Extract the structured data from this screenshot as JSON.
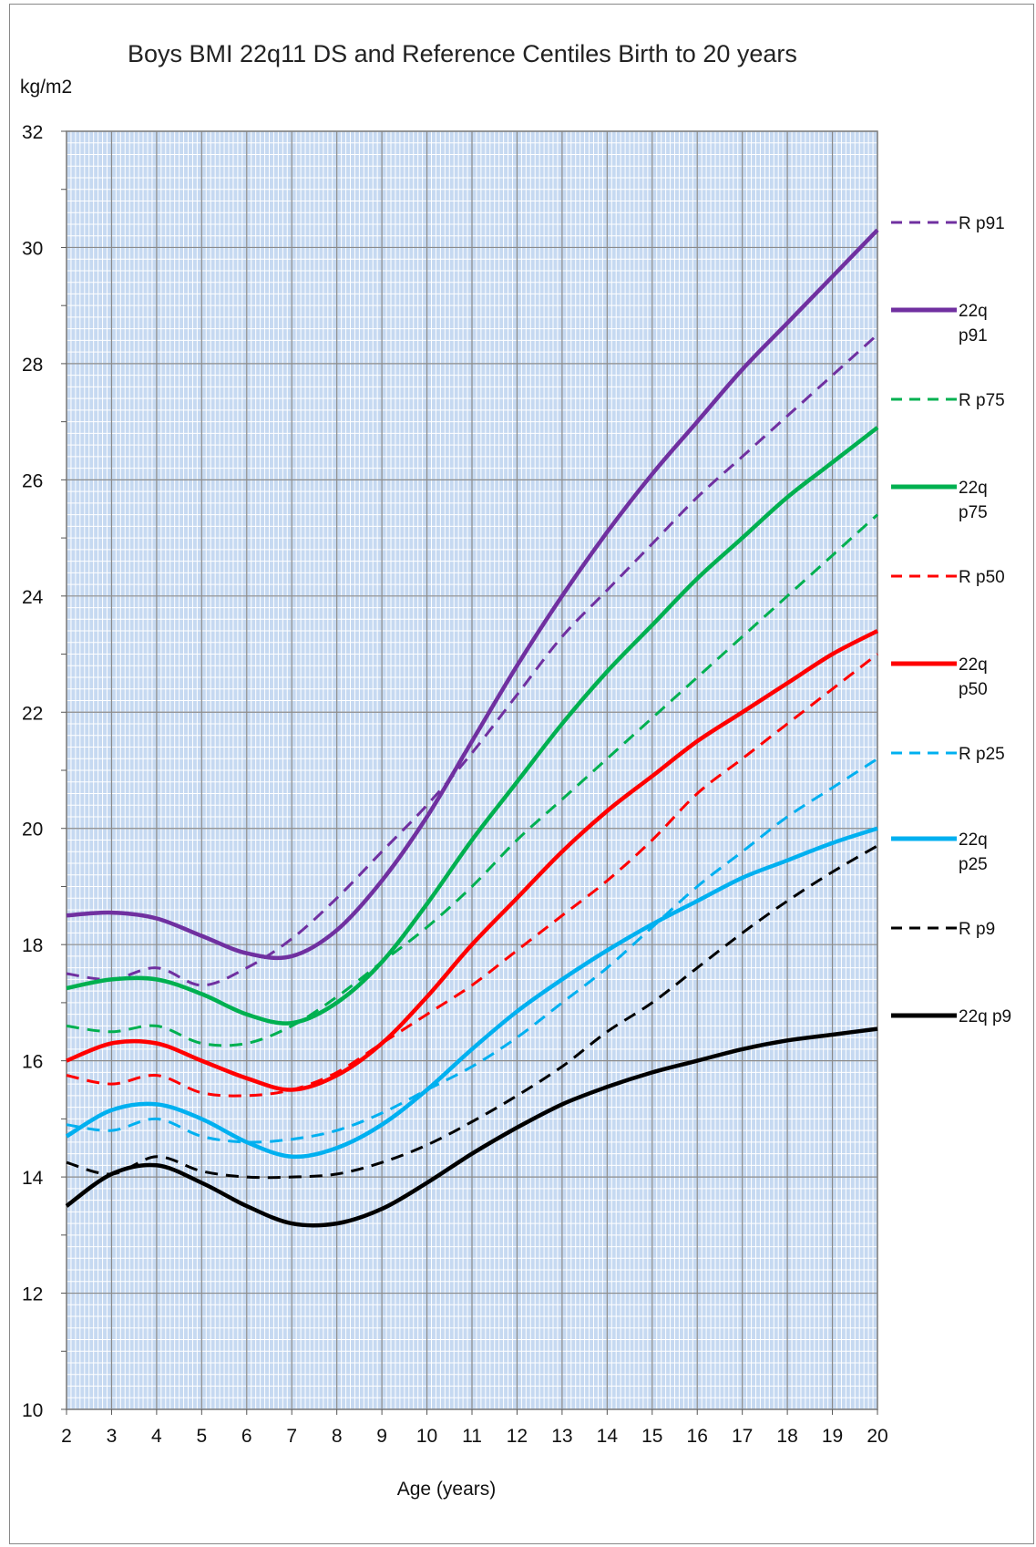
{
  "chart_data": {
    "type": "line",
    "title": "Boys BMI 22q11 DS and Reference Centiles Birth to 20 years",
    "ylabel": "kg/m2",
    "xlabel": "Age (years)",
    "xlim": [
      2,
      20
    ],
    "ylim": [
      10,
      32
    ],
    "x_ticks": [
      2,
      3,
      4,
      5,
      6,
      7,
      8,
      9,
      10,
      11,
      12,
      13,
      14,
      15,
      16,
      17,
      18,
      19,
      20
    ],
    "y_ticks": [
      10,
      12,
      14,
      16,
      18,
      20,
      22,
      24,
      26,
      28,
      30,
      32
    ],
    "grid": true,
    "legend_position": "right",
    "series": [
      {
        "name": "R p91",
        "dashed": true,
        "color": "#7030a0",
        "points": [
          [
            2,
            17.5
          ],
          [
            3,
            17.4
          ],
          [
            4,
            17.6
          ],
          [
            5,
            17.3
          ],
          [
            6,
            17.6
          ],
          [
            7,
            18.1
          ],
          [
            8,
            18.8
          ],
          [
            9,
            19.6
          ],
          [
            10,
            20.4
          ],
          [
            11,
            21.3
          ],
          [
            12,
            22.3
          ],
          [
            13,
            23.3
          ],
          [
            14,
            24.1
          ],
          [
            15,
            24.9
          ],
          [
            16,
            25.7
          ],
          [
            17,
            26.4
          ],
          [
            18,
            27.1
          ],
          [
            19,
            27.8
          ],
          [
            20,
            28.5
          ]
        ]
      },
      {
        "name": "22q p91",
        "dashed": false,
        "color": "#7030a0",
        "points": [
          [
            2,
            18.5
          ],
          [
            3,
            18.55
          ],
          [
            4,
            18.45
          ],
          [
            5,
            18.15
          ],
          [
            6,
            17.85
          ],
          [
            7,
            17.8
          ],
          [
            8,
            18.25
          ],
          [
            9,
            19.1
          ],
          [
            10,
            20.2
          ],
          [
            11,
            21.5
          ],
          [
            12,
            22.8
          ],
          [
            13,
            24.0
          ],
          [
            14,
            25.1
          ],
          [
            15,
            26.1
          ],
          [
            16,
            27.0
          ],
          [
            17,
            27.9
          ],
          [
            18,
            28.7
          ],
          [
            19,
            29.5
          ],
          [
            20,
            30.3
          ]
        ]
      },
      {
        "name": "R p75",
        "dashed": true,
        "color": "#00b050",
        "points": [
          [
            2,
            16.6
          ],
          [
            3,
            16.5
          ],
          [
            4,
            16.6
          ],
          [
            5,
            16.3
          ],
          [
            6,
            16.3
          ],
          [
            7,
            16.6
          ],
          [
            8,
            17.1
          ],
          [
            9,
            17.7
          ],
          [
            10,
            18.3
          ],
          [
            11,
            19.0
          ],
          [
            12,
            19.8
          ],
          [
            13,
            20.5
          ],
          [
            14,
            21.2
          ],
          [
            15,
            21.9
          ],
          [
            16,
            22.6
          ],
          [
            17,
            23.3
          ],
          [
            18,
            24.0
          ],
          [
            19,
            24.7
          ],
          [
            20,
            25.4
          ]
        ]
      },
      {
        "name": "22q p75",
        "dashed": false,
        "color": "#00b050",
        "points": [
          [
            2,
            17.25
          ],
          [
            3,
            17.4
          ],
          [
            4,
            17.4
          ],
          [
            5,
            17.15
          ],
          [
            6,
            16.8
          ],
          [
            7,
            16.65
          ],
          [
            8,
            17.0
          ],
          [
            9,
            17.7
          ],
          [
            10,
            18.7
          ],
          [
            11,
            19.8
          ],
          [
            12,
            20.8
          ],
          [
            13,
            21.8
          ],
          [
            14,
            22.7
          ],
          [
            15,
            23.5
          ],
          [
            16,
            24.3
          ],
          [
            17,
            25.0
          ],
          [
            18,
            25.7
          ],
          [
            19,
            26.3
          ],
          [
            20,
            26.9
          ]
        ]
      },
      {
        "name": "R p50",
        "dashed": true,
        "color": "#ff0000",
        "points": [
          [
            2,
            15.75
          ],
          [
            3,
            15.6
          ],
          [
            4,
            15.75
          ],
          [
            5,
            15.45
          ],
          [
            6,
            15.4
          ],
          [
            7,
            15.5
          ],
          [
            8,
            15.8
          ],
          [
            9,
            16.3
          ],
          [
            10,
            16.8
          ],
          [
            11,
            17.3
          ],
          [
            12,
            17.9
          ],
          [
            13,
            18.5
          ],
          [
            14,
            19.1
          ],
          [
            15,
            19.8
          ],
          [
            16,
            20.6
          ],
          [
            17,
            21.2
          ],
          [
            18,
            21.8
          ],
          [
            19,
            22.4
          ],
          [
            20,
            23.0
          ]
        ]
      },
      {
        "name": "22q p50",
        "dashed": false,
        "color": "#ff0000",
        "points": [
          [
            2,
            16.0
          ],
          [
            3,
            16.3
          ],
          [
            4,
            16.3
          ],
          [
            5,
            16.0
          ],
          [
            6,
            15.7
          ],
          [
            7,
            15.5
          ],
          [
            8,
            15.75
          ],
          [
            9,
            16.3
          ],
          [
            10,
            17.1
          ],
          [
            11,
            18.0
          ],
          [
            12,
            18.8
          ],
          [
            13,
            19.6
          ],
          [
            14,
            20.3
          ],
          [
            15,
            20.9
          ],
          [
            16,
            21.5
          ],
          [
            17,
            22.0
          ],
          [
            18,
            22.5
          ],
          [
            19,
            23.0
          ],
          [
            20,
            23.4
          ]
        ]
      },
      {
        "name": "R p25",
        "dashed": true,
        "color": "#00b0f0",
        "points": [
          [
            2,
            14.9
          ],
          [
            3,
            14.8
          ],
          [
            4,
            15.0
          ],
          [
            5,
            14.7
          ],
          [
            6,
            14.6
          ],
          [
            7,
            14.65
          ],
          [
            8,
            14.8
          ],
          [
            9,
            15.1
          ],
          [
            10,
            15.5
          ],
          [
            11,
            15.9
          ],
          [
            12,
            16.4
          ],
          [
            13,
            17.0
          ],
          [
            14,
            17.6
          ],
          [
            15,
            18.3
          ],
          [
            16,
            19.0
          ],
          [
            17,
            19.6
          ],
          [
            18,
            20.2
          ],
          [
            19,
            20.7
          ],
          [
            20,
            21.2
          ]
        ]
      },
      {
        "name": "22q p25",
        "dashed": false,
        "color": "#00b0f0",
        "points": [
          [
            2,
            14.7
          ],
          [
            3,
            15.15
          ],
          [
            4,
            15.25
          ],
          [
            5,
            15.0
          ],
          [
            6,
            14.6
          ],
          [
            7,
            14.35
          ],
          [
            8,
            14.5
          ],
          [
            9,
            14.9
          ],
          [
            10,
            15.5
          ],
          [
            11,
            16.2
          ],
          [
            12,
            16.85
          ],
          [
            13,
            17.4
          ],
          [
            14,
            17.9
          ],
          [
            15,
            18.35
          ],
          [
            16,
            18.75
          ],
          [
            17,
            19.15
          ],
          [
            18,
            19.45
          ],
          [
            19,
            19.75
          ],
          [
            20,
            20.0
          ]
        ]
      },
      {
        "name": "R p9",
        "dashed": true,
        "color": "#000000",
        "points": [
          [
            2,
            14.25
          ],
          [
            3,
            14.05
          ],
          [
            4,
            14.35
          ],
          [
            5,
            14.1
          ],
          [
            6,
            14.0
          ],
          [
            7,
            14.0
          ],
          [
            8,
            14.05
          ],
          [
            9,
            14.25
          ],
          [
            10,
            14.55
          ],
          [
            11,
            14.95
          ],
          [
            12,
            15.4
          ],
          [
            13,
            15.9
          ],
          [
            14,
            16.5
          ],
          [
            15,
            17.0
          ],
          [
            16,
            17.6
          ],
          [
            17,
            18.2
          ],
          [
            18,
            18.75
          ],
          [
            19,
            19.25
          ],
          [
            20,
            19.7
          ]
        ]
      },
      {
        "name": "22q p9",
        "dashed": false,
        "color": "#000000",
        "points": [
          [
            2,
            13.5
          ],
          [
            3,
            14.05
          ],
          [
            4,
            14.2
          ],
          [
            5,
            13.9
          ],
          [
            6,
            13.5
          ],
          [
            7,
            13.2
          ],
          [
            8,
            13.2
          ],
          [
            9,
            13.45
          ],
          [
            10,
            13.9
          ],
          [
            11,
            14.4
          ],
          [
            12,
            14.85
          ],
          [
            13,
            15.25
          ],
          [
            14,
            15.55
          ],
          [
            15,
            15.8
          ],
          [
            16,
            16.0
          ],
          [
            17,
            16.2
          ],
          [
            18,
            16.35
          ],
          [
            19,
            16.45
          ],
          [
            20,
            16.55
          ]
        ]
      }
    ]
  }
}
